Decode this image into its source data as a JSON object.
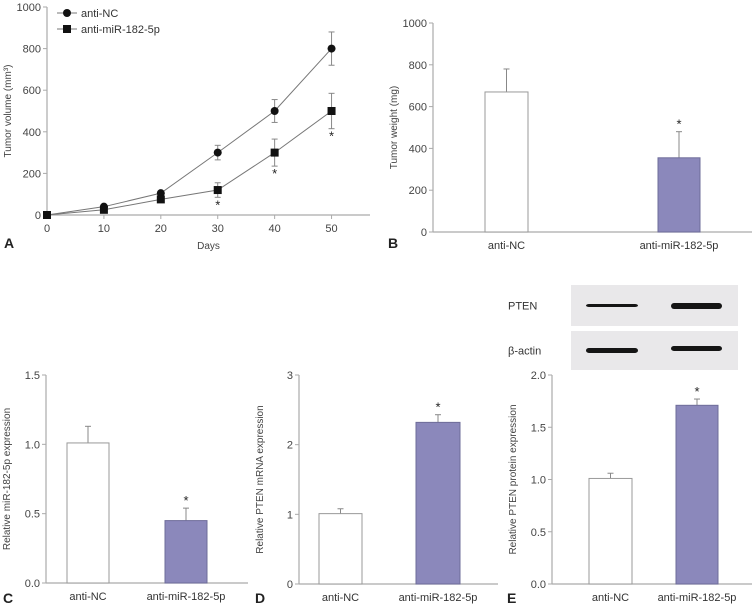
{
  "colors": {
    "treatment_bar": "#8b88bb",
    "control_bar": "#ffffff",
    "axis": "#aaaaaa",
    "line": "#777777",
    "marker": "#111111"
  },
  "chart_data": [
    {
      "panel": "A",
      "type": "line",
      "xlabel": "Days",
      "ylabel": "Tumor volume (mm³)",
      "x": [
        0,
        10,
        20,
        30,
        40,
        50
      ],
      "xlim": [
        0,
        55
      ],
      "ylim": [
        0,
        1000
      ],
      "xticks": [
        "0",
        "10",
        "20",
        "30",
        "40",
        "50"
      ],
      "yticks": [
        "0",
        "200",
        "400",
        "600",
        "800",
        "1000"
      ],
      "legend_position": "top-left",
      "series": [
        {
          "name": "anti-NC",
          "marker": "circle",
          "values": [
            0,
            40,
            105,
            300,
            500,
            800
          ],
          "errors": [
            0,
            5,
            8,
            35,
            55,
            80
          ],
          "significant": [
            false,
            false,
            false,
            false,
            false,
            false
          ]
        },
        {
          "name": "anti-miR-182-5p",
          "marker": "square",
          "values": [
            0,
            25,
            75,
            120,
            300,
            500
          ],
          "errors": [
            0,
            5,
            8,
            35,
            65,
            85
          ],
          "significant": [
            false,
            false,
            false,
            true,
            true,
            true
          ]
        }
      ],
      "annotation": "*"
    },
    {
      "panel": "B",
      "type": "bar",
      "ylabel": "Tumor weight (mg)",
      "categories": [
        "anti-NC",
        "anti-miR-182-5p"
      ],
      "values": [
        670,
        355
      ],
      "errors": [
        110,
        125
      ],
      "significant": [
        false,
        true
      ],
      "ylim": [
        0,
        1000
      ],
      "yticks": [
        "0",
        "200",
        "400",
        "600",
        "800",
        "1000"
      ],
      "annotation": "*"
    },
    {
      "panel": "C",
      "type": "bar",
      "ylabel": "Relative miR-182-5p expression",
      "categories": [
        "anti-NC",
        "anti-miR-182-5p"
      ],
      "values": [
        1.01,
        0.45
      ],
      "errors": [
        0.12,
        0.09
      ],
      "significant": [
        false,
        true
      ],
      "ylim": [
        0,
        1.5
      ],
      "yticks": [
        "0.0",
        "0.5",
        "1.0",
        "1.5"
      ],
      "annotation": "*"
    },
    {
      "panel": "D",
      "type": "bar",
      "ylabel": "Relative PTEN mRNA expression",
      "categories": [
        "anti-NC",
        "anti-miR-182-5p"
      ],
      "values": [
        1.01,
        2.32
      ],
      "errors": [
        0.07,
        0.11
      ],
      "significant": [
        false,
        true
      ],
      "ylim": [
        0,
        3
      ],
      "yticks": [
        "0",
        "1",
        "2",
        "3"
      ],
      "annotation": "*"
    },
    {
      "panel": "E",
      "type": "bar",
      "ylabel": "Relative PTEN protein expression",
      "categories": [
        "anti-NC",
        "anti-miR-182-5p"
      ],
      "values": [
        1.01,
        1.71
      ],
      "errors": [
        0.05,
        0.06
      ],
      "significant": [
        false,
        true
      ],
      "ylim": [
        0,
        2.0
      ],
      "yticks": [
        "0.0",
        "0.5",
        "1.0",
        "1.5",
        "2.0"
      ],
      "annotation": "*",
      "blot": {
        "rows": [
          "PTEN",
          "β-actin"
        ],
        "lanes": [
          "anti-NC",
          "anti-miR-182-5p"
        ]
      }
    }
  ]
}
